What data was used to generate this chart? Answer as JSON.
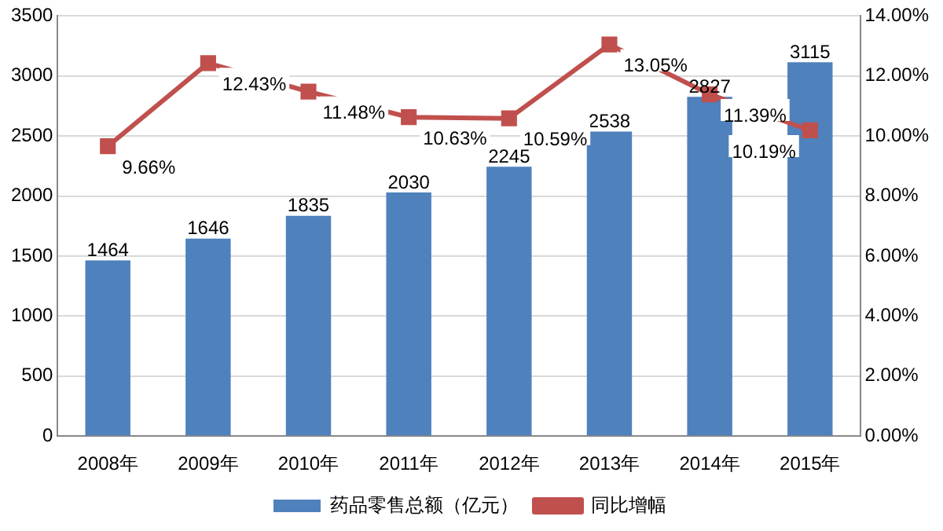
{
  "chart_data": {
    "type": "bar",
    "categories": [
      "2008年",
      "2009年",
      "2010年",
      "2011年",
      "2012年",
      "2013年",
      "2014年",
      "2015年"
    ],
    "series": [
      {
        "name": "药品零售总额（亿元）",
        "color": "#4f81bd",
        "values": [
          1464,
          1646,
          1835,
          2030,
          2245,
          2538,
          2827,
          3115
        ],
        "value_labels": [
          "1464",
          "1646",
          "1835",
          "2030",
          "2245",
          "2538",
          "2827",
          "3115"
        ]
      },
      {
        "name": "同比增幅",
        "type": "line",
        "axis": "y2",
        "color": "#c0504d",
        "marker": "square",
        "values": [
          9.66,
          12.43,
          11.48,
          10.63,
          10.59,
          13.05,
          11.39,
          10.19
        ],
        "value_labels": [
          "9.66%",
          "12.43%",
          "11.48%",
          "10.63%",
          "10.59%",
          "13.05%",
          "11.39%",
          "10.19%"
        ]
      }
    ],
    "ylim": [
      0,
      3500
    ],
    "yticks": [
      0,
      500,
      1000,
      1500,
      2000,
      2500,
      3000,
      3500
    ],
    "y2lim": [
      0,
      14
    ],
    "y2ticks": [
      {
        "value": 0,
        "label": "0.00%"
      },
      {
        "value": 2,
        "label": "2.00%"
      },
      {
        "value": 4,
        "label": "4.00%"
      },
      {
        "value": 6,
        "label": "6.00%"
      },
      {
        "value": 8,
        "label": "8.00%"
      },
      {
        "value": 10,
        "label": "10.00%"
      },
      {
        "value": 12,
        "label": "12.00%"
      },
      {
        "value": 14,
        "label": "14.00%"
      }
    ],
    "grid": "y",
    "legend": "bottom"
  }
}
